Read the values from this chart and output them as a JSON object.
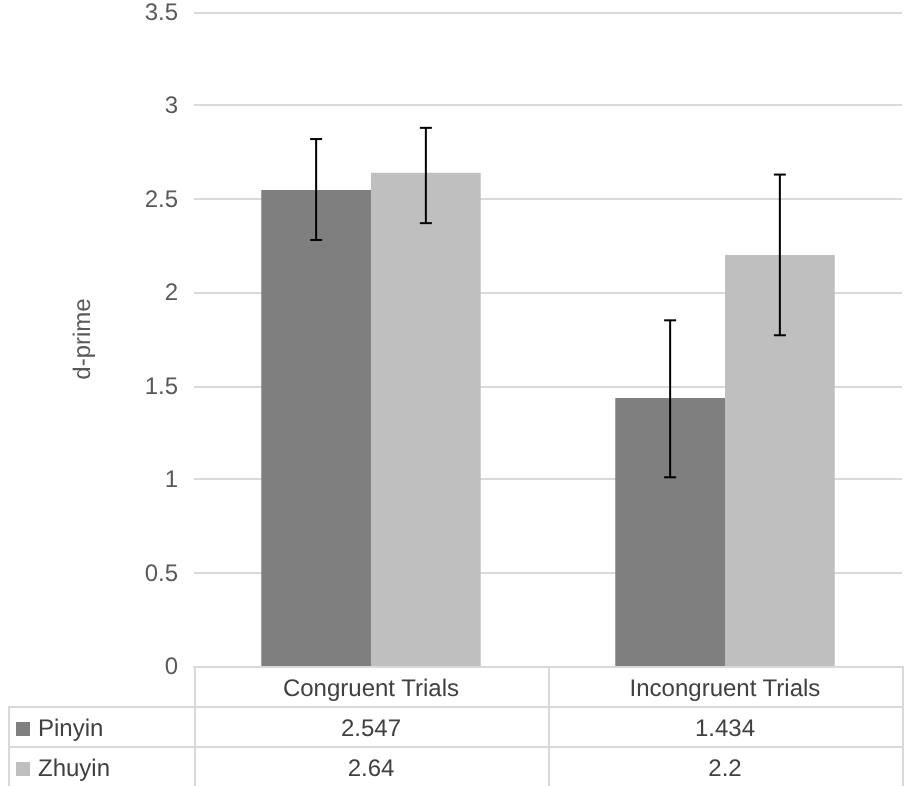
{
  "chart_data": {
    "type": "bar",
    "ylabel": "d-prime",
    "categories": [
      "Congruent Trials",
      "Incongruent Trials"
    ],
    "series": [
      {
        "name": "Pinyin",
        "color": "#7f7f7f",
        "values": [
          2.547,
          1.434
        ],
        "errors": [
          [
            2.28,
            2.82
          ],
          [
            1.01,
            1.85
          ]
        ]
      },
      {
        "name": "Zhuyin",
        "color": "#bfbfbf",
        "values": [
          2.64,
          2.2
        ],
        "errors": [
          [
            2.37,
            2.88
          ],
          [
            1.77,
            2.63
          ]
        ]
      }
    ],
    "ylim": [
      0,
      3.5
    ],
    "yticks": [
      0,
      0.5,
      1,
      1.5,
      2,
      2.5,
      3,
      3.5
    ],
    "grid": "y",
    "legend": "bottom",
    "data_labels": true
  }
}
